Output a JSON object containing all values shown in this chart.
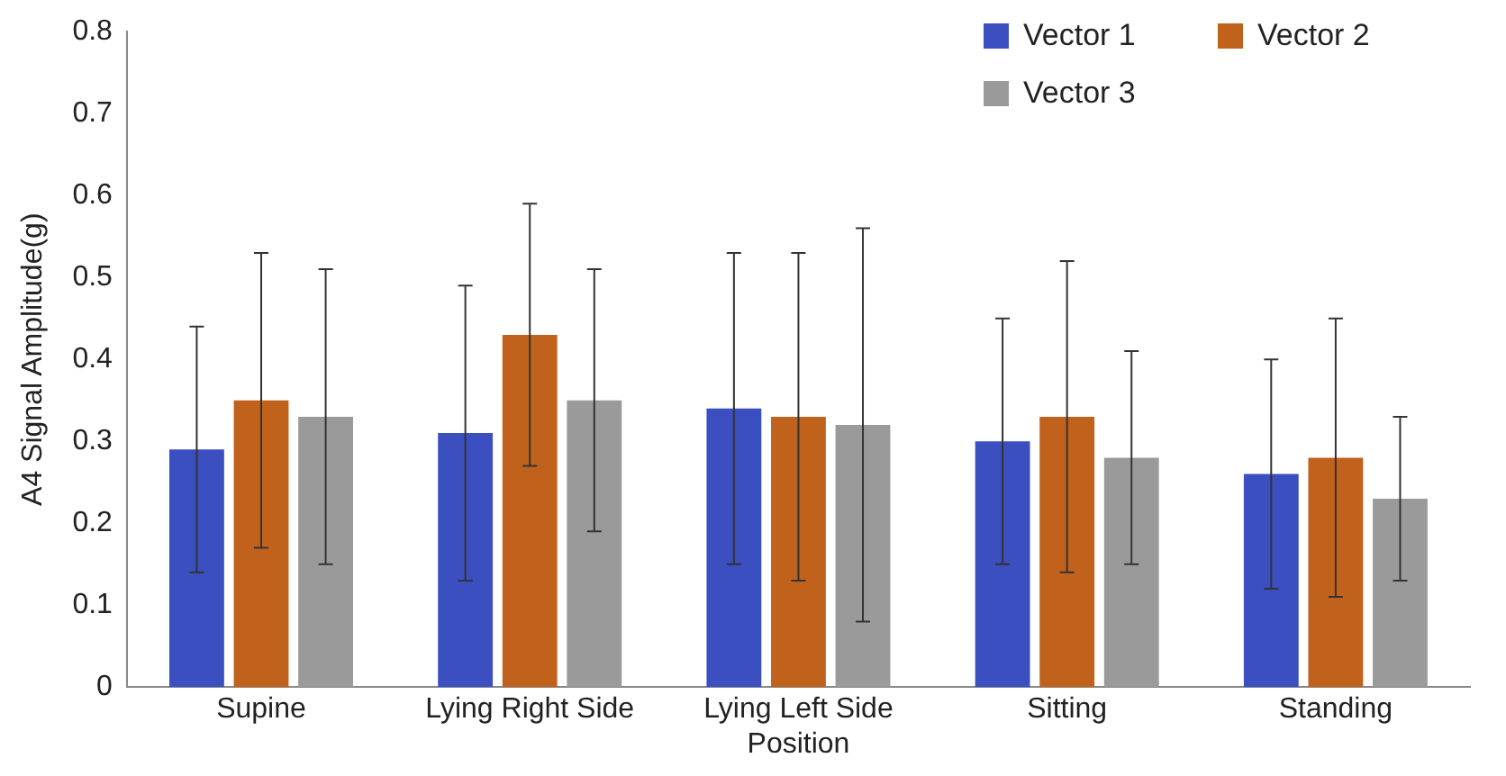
{
  "chart_data": {
    "type": "bar",
    "ylabel": "A4 Signal Amplitude(g)",
    "categories": [
      "Supine",
      "Lying Right Side",
      "Lying Left Side Position",
      "Sitting",
      "Standing"
    ],
    "series": [
      {
        "name": "Vector 1",
        "color": "#3b4fc0",
        "values": [
          0.29,
          0.31,
          0.34,
          0.3,
          0.26
        ],
        "errors": [
          0.15,
          0.18,
          0.19,
          0.15,
          0.14
        ]
      },
      {
        "name": "Vector 2",
        "color": "#c0621c",
        "values": [
          0.35,
          0.43,
          0.33,
          0.33,
          0.28
        ],
        "errors": [
          0.18,
          0.16,
          0.2,
          0.19,
          0.17
        ]
      },
      {
        "name": "Vector 3",
        "color": "#9a9a9a",
        "values": [
          0.33,
          0.35,
          0.32,
          0.28,
          0.23
        ],
        "errors": [
          0.18,
          0.16,
          0.24,
          0.13,
          0.1
        ]
      }
    ],
    "ylim": [
      0,
      0.8
    ],
    "yticks": [
      0,
      0.1,
      0.2,
      0.3,
      0.4,
      0.5,
      0.6,
      0.7,
      0.8
    ],
    "grid": false,
    "legend": "top right"
  }
}
